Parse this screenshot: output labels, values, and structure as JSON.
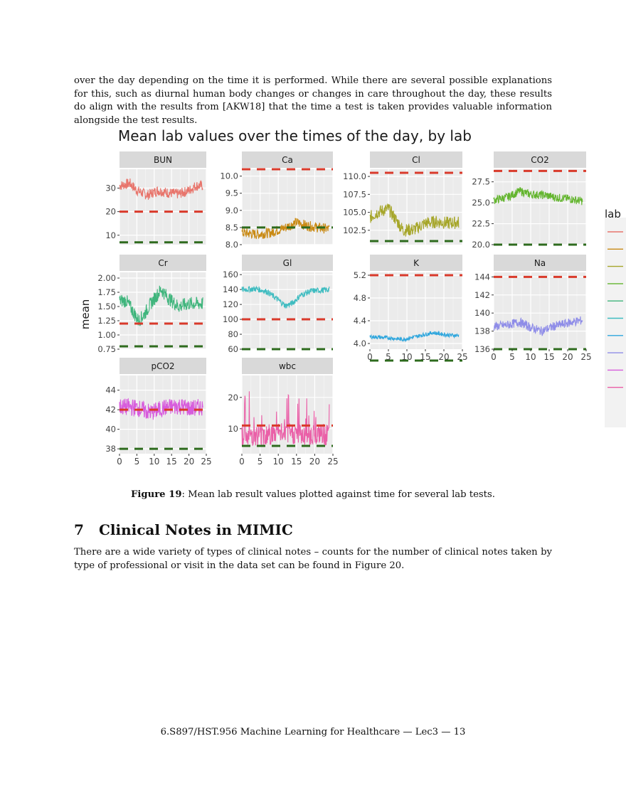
{
  "paragraph_top": "over the day depending on the time it is performed. While there are several possible explanations for this, such as diurnal human body changes or changes in care throughout the day, these results do align with the results from [AKW18] that the time a test is taken provides valuable information alongside the test results.",
  "figure": {
    "caption_label": "Figure 19",
    "caption_text": ": Mean lab result values plotted against time for several lab tests."
  },
  "section": {
    "number": "7",
    "title": "Clinical Notes in MIMIC"
  },
  "paragraph_bottom": "There are a wide variety of types of clinical notes – counts for the number of clinical notes taken by type of professional or visit in the data set can be found in Figure 20.",
  "footer": "6.S897/HST.956 Machine Learning for Healthcare — Lec3 — 13",
  "chart_data": {
    "type": "line",
    "title": "Mean lab values over the times of the day, by lab",
    "ylabel": "mean",
    "xlabel": "",
    "x_range": [
      0,
      24
    ],
    "x_ticks": [
      0,
      5,
      10,
      15,
      20,
      25
    ],
    "legend_title": "lab",
    "legend_placement": "right",
    "grid": true,
    "reference_line_colors": {
      "upper": "#d93a2b",
      "lower": "#2e6b1e"
    },
    "panels": [
      {
        "name": "BUN",
        "color": "#e8756c",
        "ylim": [
          6,
          38
        ],
        "yticks": [
          10,
          20,
          30
        ],
        "yticklabels": [
          "10",
          "20",
          "30"
        ],
        "ref_upper": 20,
        "ref_lower": 7,
        "profile": [
          [
            0,
            31
          ],
          [
            3,
            32
          ],
          [
            5,
            29
          ],
          [
            8,
            27
          ],
          [
            11,
            29
          ],
          [
            14,
            28
          ],
          [
            17,
            27.5
          ],
          [
            20,
            29
          ],
          [
            22,
            31
          ],
          [
            24,
            31
          ]
        ],
        "noise": 2.2
      },
      {
        "name": "Ca",
        "color": "#c98a14",
        "ylim": [
          8.0,
          10.2
        ],
        "yticks": [
          8.0,
          8.5,
          9.0,
          9.5,
          10.0
        ],
        "yticklabels": [
          "8.0",
          "8.5",
          "9.0",
          "9.5",
          "10.0"
        ],
        "ref_upper": 10.2,
        "ref_lower": 8.5,
        "profile": [
          [
            0,
            8.35
          ],
          [
            4,
            8.3
          ],
          [
            8,
            8.35
          ],
          [
            12,
            8.5
          ],
          [
            15,
            8.65
          ],
          [
            18,
            8.55
          ],
          [
            21,
            8.5
          ],
          [
            24,
            8.45
          ]
        ],
        "noise": 0.15
      },
      {
        "name": "Cl",
        "color": "#a6a62a",
        "ylim": [
          100.5,
          111
        ],
        "yticks": [
          102.5,
          105.0,
          107.5,
          110.0
        ],
        "yticklabels": [
          "102.5",
          "105.0",
          "107.5",
          "110.0"
        ],
        "ref_upper": 110.5,
        "ref_lower": 101,
        "profile": [
          [
            0,
            104.3
          ],
          [
            2,
            105
          ],
          [
            5,
            105.5
          ],
          [
            7,
            104
          ],
          [
            9,
            102.5
          ],
          [
            12,
            102.6
          ],
          [
            15,
            103.5
          ],
          [
            18,
            103.7
          ],
          [
            21,
            103.5
          ],
          [
            24,
            103.6
          ]
        ],
        "noise": 0.9
      },
      {
        "name": "CO2",
        "color": "#63b52e",
        "ylim": [
          20,
          29
        ],
        "yticks": [
          20.0,
          22.5,
          25.0,
          27.5
        ],
        "yticklabels": [
          "20.0",
          "22.5",
          "25.0",
          "27.5"
        ],
        "ref_upper": 28.8,
        "ref_lower": 20,
        "profile": [
          [
            0,
            25.3
          ],
          [
            4,
            25.7
          ],
          [
            7,
            26.4
          ],
          [
            10,
            26
          ],
          [
            14,
            25.9
          ],
          [
            17,
            25.6
          ],
          [
            20,
            25.5
          ],
          [
            24,
            25.2
          ]
        ],
        "noise": 0.5
      },
      {
        "name": "Cr",
        "color": "#3fb57c",
        "ylim": [
          0.75,
          2.1
        ],
        "yticks": [
          0.75,
          1.0,
          1.25,
          1.5,
          1.75,
          2.0
        ],
        "yticklabels": [
          "0.75",
          "1.00",
          "1.25",
          "1.50",
          "1.75",
          "2.00"
        ],
        "ref_upper": 1.2,
        "ref_lower": 0.8,
        "profile": [
          [
            0,
            1.6
          ],
          [
            2,
            1.6
          ],
          [
            4,
            1.4
          ],
          [
            5.5,
            1.25
          ],
          [
            7,
            1.35
          ],
          [
            9,
            1.55
          ],
          [
            12,
            1.8
          ],
          [
            14,
            1.65
          ],
          [
            17,
            1.5
          ],
          [
            20,
            1.55
          ],
          [
            24,
            1.55
          ]
        ],
        "noise": 0.12
      },
      {
        "name": "Gl",
        "color": "#3fbcc0",
        "ylim": [
          60,
          163
        ],
        "yticks": [
          60,
          80,
          100,
          120,
          140,
          160
        ],
        "yticklabels": [
          "60",
          "80",
          "100",
          "120",
          "140",
          "160"
        ],
        "ref_upper": 100,
        "ref_lower": 60,
        "profile": [
          [
            0,
            140
          ],
          [
            4,
            141
          ],
          [
            7,
            137
          ],
          [
            10,
            126
          ],
          [
            12,
            118
          ],
          [
            14,
            122
          ],
          [
            16,
            132
          ],
          [
            19,
            138
          ],
          [
            22,
            139
          ],
          [
            24,
            140
          ]
        ],
        "noise": 4
      },
      {
        "name": "K",
        "color": "#2ea6dd",
        "ylim": [
          3.9,
          5.25
        ],
        "yticks": [
          4.0,
          4.4,
          4.8,
          5.2
        ],
        "yticklabels": [
          "4.0",
          "4.4",
          "4.8",
          "5.2"
        ],
        "ref_upper": 5.2,
        "ref_lower": 3.7,
        "profile": [
          [
            0,
            4.12
          ],
          [
            5,
            4.1
          ],
          [
            9,
            4.07
          ],
          [
            13,
            4.13
          ],
          [
            17,
            4.19
          ],
          [
            21,
            4.15
          ],
          [
            24,
            4.14
          ]
        ],
        "noise": 0.035
      },
      {
        "name": "Na",
        "color": "#8e8ce8",
        "ylim": [
          136,
          144.5
        ],
        "yticks": [
          136,
          138,
          140,
          142,
          144
        ],
        "yticklabels": [
          "136",
          "138",
          "140",
          "142",
          "144"
        ],
        "ref_upper": 144,
        "ref_lower": 136,
        "profile": [
          [
            0,
            138.5
          ],
          [
            4,
            138.7
          ],
          [
            7,
            139
          ],
          [
            10,
            138.4
          ],
          [
            13,
            138
          ],
          [
            16,
            138.5
          ],
          [
            20,
            138.9
          ],
          [
            24,
            139.2
          ]
        ],
        "noise": 0.5
      },
      {
        "name": "pCO2",
        "color": "#d75cdc",
        "ylim": [
          37.5,
          45.5
        ],
        "yticks": [
          38,
          40,
          42,
          44
        ],
        "yticklabels": [
          "38",
          "40",
          "42",
          "44"
        ],
        "ref_upper": 42,
        "ref_lower": 38,
        "profile": [
          [
            0,
            42.3
          ],
          [
            5,
            42.2
          ],
          [
            9,
            41.7
          ],
          [
            13,
            42.2
          ],
          [
            17,
            42.4
          ],
          [
            21,
            42.1
          ],
          [
            24,
            42.3
          ]
        ],
        "noise": 0.9
      },
      {
        "name": "wbc",
        "color": "#ea5fa7",
        "ylim": [
          2,
          27
        ],
        "yticks": [
          10,
          20
        ],
        "yticklabels": [
          "10",
          "20"
        ],
        "ref_upper": 11,
        "ref_lower": 4.5,
        "profile": [
          [
            0,
            8
          ],
          [
            6,
            8
          ],
          [
            12,
            8.5
          ],
          [
            18,
            8
          ],
          [
            24,
            8
          ]
        ],
        "noise": 3.5
      }
    ]
  }
}
